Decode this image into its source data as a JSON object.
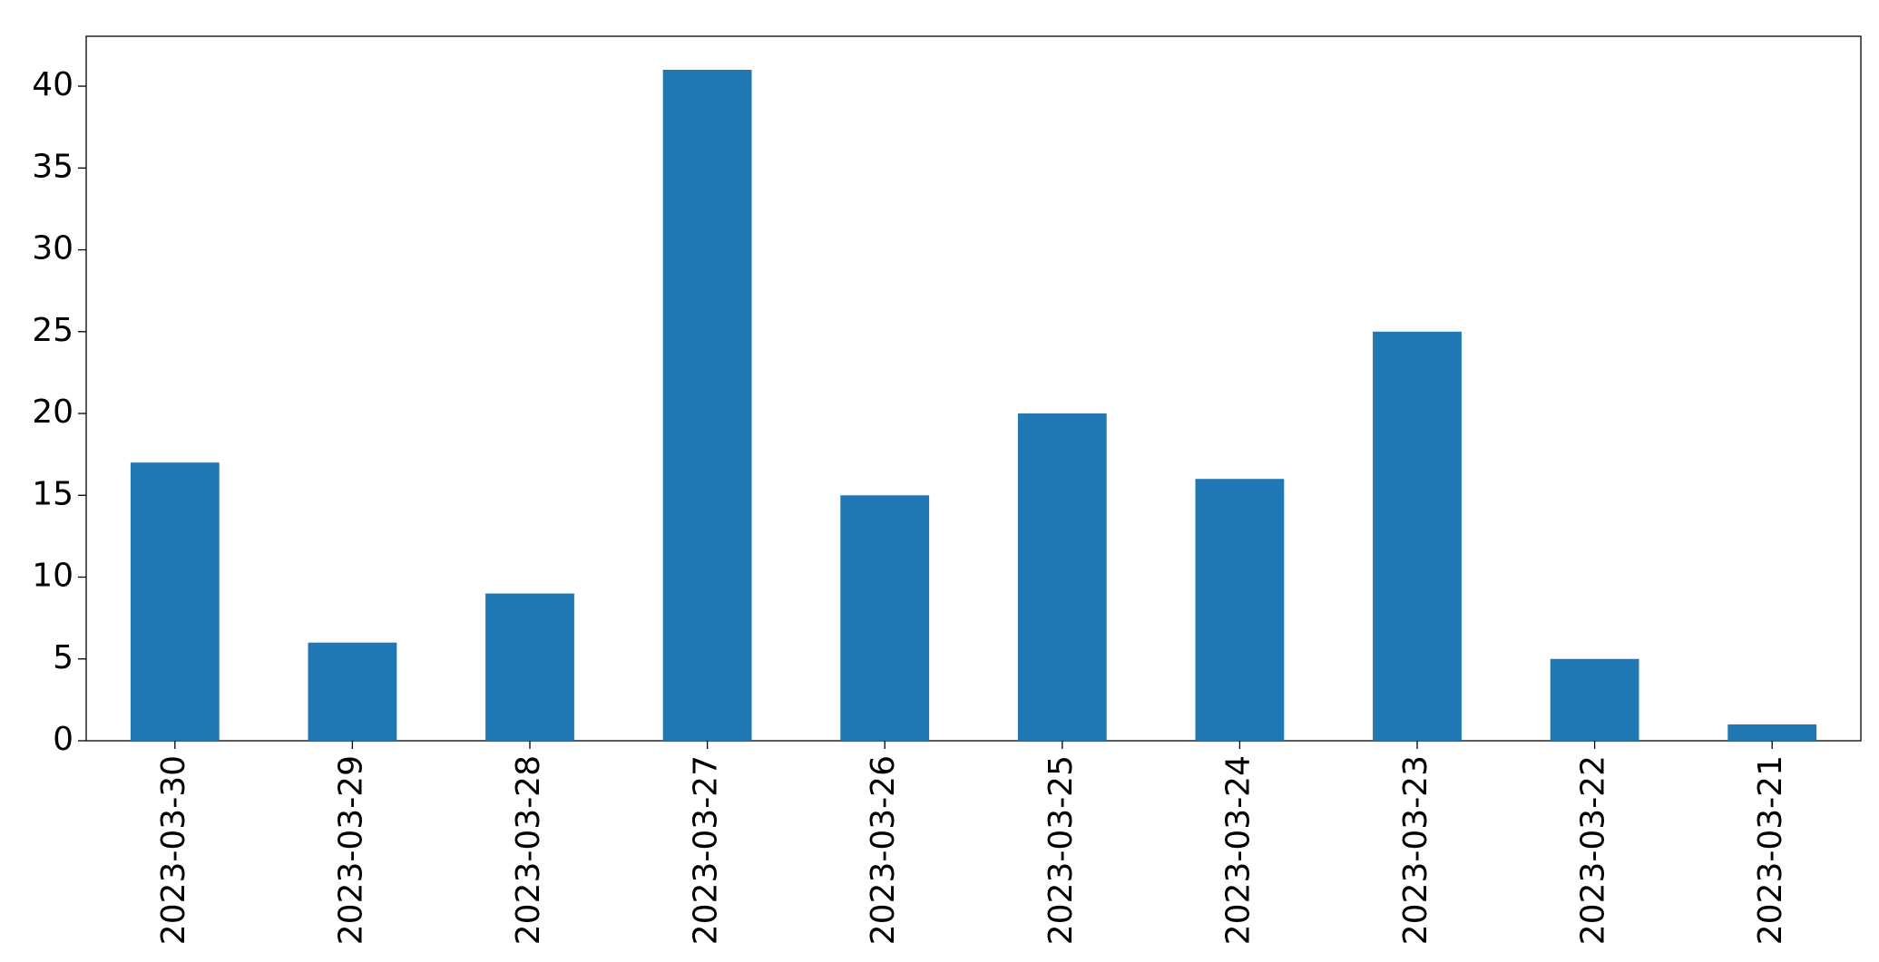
{
  "chart_data": {
    "type": "bar",
    "categories": [
      "2023-03-30",
      "2023-03-29",
      "2023-03-28",
      "2023-03-27",
      "2023-03-26",
      "2023-03-25",
      "2023-03-24",
      "2023-03-23",
      "2023-03-22",
      "2023-03-21"
    ],
    "values": [
      17,
      6,
      9,
      41,
      15,
      20,
      16,
      25,
      5,
      1
    ],
    "color": "#1f77b4",
    "ylim": [
      0,
      43.05
    ],
    "yticks": [
      0,
      5,
      10,
      15,
      20,
      25,
      30,
      35,
      40
    ],
    "grid": false
  }
}
